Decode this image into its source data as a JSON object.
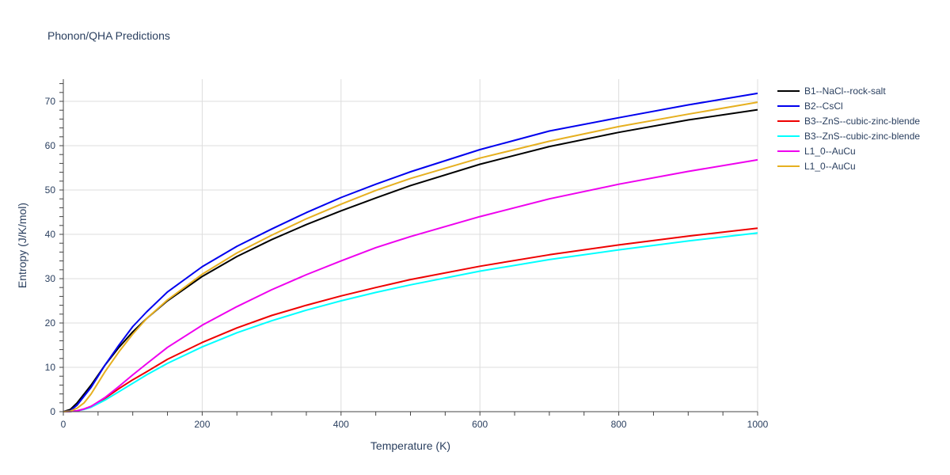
{
  "chart_data": {
    "type": "line",
    "title": "Phonon/QHA Predictions",
    "xlabel": "Temperature (K)",
    "ylabel": "Entropy (J/K/mol)",
    "xlim": [
      0,
      1000
    ],
    "ylim": [
      0,
      75
    ],
    "xticks": [
      0,
      200,
      400,
      600,
      800,
      1000
    ],
    "yticks": [
      0,
      10,
      20,
      30,
      40,
      50,
      60,
      70
    ],
    "grid": true,
    "legend_position": "right",
    "x": [
      0,
      10,
      20,
      30,
      40,
      60,
      80,
      100,
      120,
      150,
      200,
      250,
      300,
      350,
      400,
      450,
      500,
      600,
      700,
      800,
      900,
      1000
    ],
    "series": [
      {
        "name": "B1--NaCl--rock-salt",
        "color": "#000000",
        "values": [
          0,
          0.5,
          2.0,
          4.0,
          6.0,
          10.5,
          14.5,
          18.0,
          21.0,
          25.0,
          30.5,
          35.0,
          38.8,
          42.2,
          45.3,
          48.2,
          51.0,
          55.8,
          59.8,
          63.0,
          65.8,
          68.1
        ]
      },
      {
        "name": "B2--CsCl",
        "color": "#0000ee",
        "values": [
          0,
          0.2,
          1.5,
          3.5,
          5.5,
          10.5,
          15.0,
          19.2,
          22.5,
          27.0,
          32.7,
          37.3,
          41.2,
          44.9,
          48.3,
          51.3,
          54.1,
          59.1,
          63.3,
          66.3,
          69.2,
          71.8
        ]
      },
      {
        "name": "B3--ZnS--cubic-zinc-blende",
        "color": "#ee0000",
        "values": [
          0,
          0.05,
          0.2,
          0.6,
          1.2,
          3.0,
          5.2,
          7.2,
          9.0,
          11.8,
          15.6,
          18.9,
          21.7,
          24.0,
          26.1,
          28.0,
          29.8,
          32.8,
          35.4,
          37.6,
          39.6,
          41.4
        ]
      },
      {
        "name": "B3--ZnS--cubic-zinc-blende",
        "color": "#00ffff",
        "values": [
          0,
          0.05,
          0.2,
          0.5,
          1.0,
          2.6,
          4.5,
          6.4,
          8.3,
          10.9,
          14.6,
          17.8,
          20.5,
          22.9,
          25.0,
          26.9,
          28.6,
          31.7,
          34.3,
          36.5,
          38.5,
          40.3
        ]
      },
      {
        "name": "L1_0--AuCu",
        "color": "#ee00ee",
        "values": [
          0,
          0.05,
          0.2,
          0.6,
          1.2,
          3.2,
          5.7,
          8.3,
          10.8,
          14.5,
          19.5,
          23.7,
          27.5,
          30.9,
          34.0,
          37.0,
          39.5,
          44.0,
          48.0,
          51.3,
          54.2,
          56.8
        ]
      },
      {
        "name": "L1_0--AuCu",
        "color": "#e6b020",
        "values": [
          0,
          0.1,
          0.8,
          2.0,
          4.0,
          9.0,
          13.5,
          17.5,
          21.0,
          25.2,
          31.0,
          35.8,
          39.8,
          43.5,
          46.8,
          49.9,
          52.6,
          57.2,
          61.0,
          64.3,
          67.1,
          69.8
        ]
      }
    ]
  }
}
